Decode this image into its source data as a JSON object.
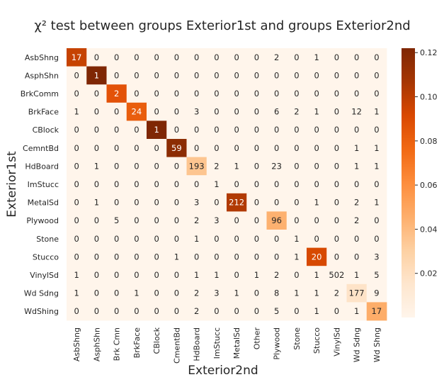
{
  "chart_data": {
    "type": "heatmap",
    "title": "χ² test between groups Exterior1st and groups Exterior2nd",
    "xlabel": "Exterior2nd",
    "ylabel": "Exterior1st",
    "rows": [
      "AsbShng",
      "AsphShn",
      "BrkComm",
      "BrkFace",
      "CBlock",
      "CemntBd",
      "HdBoard",
      "ImStucc",
      "MetalSd",
      "Plywood",
      "Stone",
      "Stucco",
      "VinylSd",
      "Wd Sdng",
      "WdShing"
    ],
    "columns": [
      "AsbShng",
      "AsphShn",
      "Brk Cmn",
      "BrkFace",
      "CBlock",
      "CmentBd",
      "HdBoard",
      "ImStucc",
      "MetalSd",
      "Other",
      "Plywood",
      "Stone",
      "Stucco",
      "VinylSd",
      "Wd Sdng",
      "Wd Shng"
    ],
    "values": [
      [
        17,
        0,
        0,
        0,
        0,
        0,
        0,
        0,
        0,
        0,
        2,
        0,
        1,
        0,
        0,
        0
      ],
      [
        0,
        1,
        0,
        0,
        0,
        0,
        0,
        0,
        0,
        0,
        0,
        0,
        0,
        0,
        0,
        0
      ],
      [
        0,
        0,
        2,
        0,
        0,
        0,
        0,
        0,
        0,
        0,
        0,
        0,
        0,
        0,
        0,
        0
      ],
      [
        1,
        0,
        0,
        24,
        0,
        0,
        3,
        0,
        0,
        0,
        6,
        2,
        1,
        0,
        12,
        1
      ],
      [
        0,
        0,
        0,
        0,
        1,
        0,
        0,
        0,
        0,
        0,
        0,
        0,
        0,
        0,
        0,
        0
      ],
      [
        0,
        0,
        0,
        0,
        0,
        59,
        0,
        0,
        0,
        0,
        0,
        0,
        0,
        0,
        1,
        1
      ],
      [
        0,
        1,
        0,
        0,
        0,
        0,
        193,
        2,
        1,
        0,
        23,
        0,
        0,
        0,
        1,
        1
      ],
      [
        0,
        0,
        0,
        0,
        0,
        0,
        0,
        1,
        0,
        0,
        0,
        0,
        0,
        0,
        0,
        0
      ],
      [
        0,
        1,
        0,
        0,
        0,
        0,
        3,
        0,
        212,
        0,
        0,
        0,
        1,
        0,
        2,
        1
      ],
      [
        0,
        0,
        5,
        0,
        0,
        0,
        2,
        3,
        0,
        0,
        96,
        0,
        0,
        0,
        2,
        0
      ],
      [
        0,
        0,
        0,
        0,
        0,
        0,
        1,
        0,
        0,
        0,
        0,
        1,
        0,
        0,
        0,
        0
      ],
      [
        0,
        0,
        0,
        0,
        0,
        1,
        0,
        0,
        0,
        0,
        0,
        1,
        20,
        0,
        0,
        3
      ],
      [
        1,
        0,
        0,
        0,
        0,
        0,
        1,
        1,
        0,
        1,
        2,
        0,
        1,
        502,
        1,
        5
      ],
      [
        1,
        0,
        0,
        1,
        0,
        0,
        2,
        3,
        1,
        0,
        8,
        1,
        1,
        2,
        177,
        9
      ],
      [
        0,
        0,
        0,
        0,
        0,
        0,
        2,
        0,
        0,
        0,
        5,
        0,
        1,
        0,
        1,
        17
      ]
    ],
    "cell_colors": [
      [
        "#c64301",
        "#fff5eb",
        "#fff5eb",
        "#fff5eb",
        "#fff5eb",
        "#fff5eb",
        "#fff5eb",
        "#fff5eb",
        "#fff5eb",
        "#fff5eb",
        "#fff5eb",
        "#fff5eb",
        "#fff5eb",
        "#fff5eb",
        "#fff5eb",
        "#fff5eb"
      ],
      [
        "#fff5eb",
        "#7f2704",
        "#fff5eb",
        "#fff5eb",
        "#fff5eb",
        "#fff5eb",
        "#fff5eb",
        "#fff5eb",
        "#fff5eb",
        "#fff5eb",
        "#fff5eb",
        "#fff5eb",
        "#fff5eb",
        "#fff5eb",
        "#fff5eb",
        "#fff5eb"
      ],
      [
        "#fff5eb",
        "#fff5eb",
        "#e35208",
        "#fff5eb",
        "#fff5eb",
        "#fff5eb",
        "#fff5eb",
        "#fff5eb",
        "#fff5eb",
        "#fff5eb",
        "#fff5eb",
        "#fff5eb",
        "#fff5eb",
        "#fff5eb",
        "#fff5eb",
        "#fff5eb"
      ],
      [
        "#fff5eb",
        "#fff5eb",
        "#fff5eb",
        "#e95e0d",
        "#fff5eb",
        "#fff5eb",
        "#fff5eb",
        "#fff5eb",
        "#fff5eb",
        "#fff5eb",
        "#fff5eb",
        "#fff5eb",
        "#fff5eb",
        "#fff5eb",
        "#fff5eb",
        "#fff5eb"
      ],
      [
        "#fff5eb",
        "#fff5eb",
        "#fff5eb",
        "#fff5eb",
        "#7f2704",
        "#fff5eb",
        "#fff5eb",
        "#fff5eb",
        "#fff5eb",
        "#fff5eb",
        "#fff5eb",
        "#fff5eb",
        "#fff5eb",
        "#fff5eb",
        "#fff5eb",
        "#fff5eb"
      ],
      [
        "#fff5eb",
        "#fff5eb",
        "#fff5eb",
        "#fff5eb",
        "#fff5eb",
        "#8c2d04",
        "#fff5eb",
        "#fff5eb",
        "#fff5eb",
        "#fff5eb",
        "#fff5eb",
        "#fff5eb",
        "#fff5eb",
        "#fff5eb",
        "#fff5eb",
        "#fff5eb"
      ],
      [
        "#fff5eb",
        "#fff5eb",
        "#fff5eb",
        "#fff5eb",
        "#fff5eb",
        "#fff5eb",
        "#fdc590",
        "#fff5eb",
        "#fff5eb",
        "#fff5eb",
        "#fff5eb",
        "#fff5eb",
        "#fff5eb",
        "#fff5eb",
        "#fff5eb",
        "#fff5eb"
      ],
      [
        "#fff5eb",
        "#fff5eb",
        "#fff5eb",
        "#fff5eb",
        "#fff5eb",
        "#fff5eb",
        "#fff5eb",
        "#fff5eb",
        "#fff5eb",
        "#fff5eb",
        "#fff5eb",
        "#fff5eb",
        "#fff5eb",
        "#fff5eb",
        "#fff5eb",
        "#fff5eb"
      ],
      [
        "#fff5eb",
        "#fff5eb",
        "#fff5eb",
        "#fff5eb",
        "#fff5eb",
        "#fff5eb",
        "#fff5eb",
        "#fff5eb",
        "#b13a03",
        "#fff5eb",
        "#fff5eb",
        "#fff5eb",
        "#fff5eb",
        "#fff5eb",
        "#fff5eb",
        "#fff5eb"
      ],
      [
        "#fff5eb",
        "#fff5eb",
        "#fff5eb",
        "#fff5eb",
        "#fff5eb",
        "#fff5eb",
        "#fff5eb",
        "#fff5eb",
        "#fff5eb",
        "#fff5eb",
        "#fdb170",
        "#fff5eb",
        "#fff5eb",
        "#fff5eb",
        "#fff5eb",
        "#fff5eb"
      ],
      [
        "#fff5eb",
        "#fff5eb",
        "#fff5eb",
        "#fff5eb",
        "#fff5eb",
        "#fff5eb",
        "#fff5eb",
        "#fff5eb",
        "#fff5eb",
        "#fff5eb",
        "#fff5eb",
        "#fff5eb",
        "#fff5eb",
        "#fff5eb",
        "#fff5eb",
        "#fff5eb"
      ],
      [
        "#fff5eb",
        "#fff5eb",
        "#fff5eb",
        "#fff5eb",
        "#fff5eb",
        "#fff5eb",
        "#fff5eb",
        "#fff5eb",
        "#fff5eb",
        "#fff5eb",
        "#fff5eb",
        "#fff5eb",
        "#d74901",
        "#fff5eb",
        "#fff5eb",
        "#fff5eb"
      ],
      [
        "#fff5eb",
        "#fff5eb",
        "#fff5eb",
        "#fff5eb",
        "#fff5eb",
        "#fff5eb",
        "#fff5eb",
        "#fff5eb",
        "#fff5eb",
        "#fff5eb",
        "#fff5eb",
        "#fff5eb",
        "#fff5eb",
        "#fff5eb",
        "#fff5eb",
        "#fff5eb"
      ],
      [
        "#fff5eb",
        "#fff5eb",
        "#fff5eb",
        "#fff5eb",
        "#fff5eb",
        "#fff5eb",
        "#fff5eb",
        "#fff5eb",
        "#fff5eb",
        "#fff5eb",
        "#fff5eb",
        "#fff5eb",
        "#fff5eb",
        "#fff5eb",
        "#fee3c8",
        "#fff5eb"
      ],
      [
        "#fff5eb",
        "#fff5eb",
        "#fff5eb",
        "#fff5eb",
        "#fff5eb",
        "#fff5eb",
        "#fff5eb",
        "#fff5eb",
        "#fff5eb",
        "#fff5eb",
        "#fff5eb",
        "#fff5eb",
        "#fff5eb",
        "#fff5eb",
        "#fff5eb",
        "#fdad69"
      ]
    ],
    "colorbar": {
      "colors": [
        "#fff5eb",
        "#fee6ce",
        "#fdd0a2",
        "#fdae6b",
        "#fd8d3c",
        "#f16913",
        "#d94801",
        "#a63603",
        "#7f2704"
      ],
      "min": 0,
      "max": 0.122,
      "ticks": [
        0.02,
        0.04,
        0.06,
        0.08,
        0.1,
        0.12
      ],
      "tick_labels": [
        "0.02",
        "0.04",
        "0.06",
        "0.08",
        "0.10",
        "0.12"
      ]
    },
    "grid": false,
    "legend": "colorbar-right"
  }
}
